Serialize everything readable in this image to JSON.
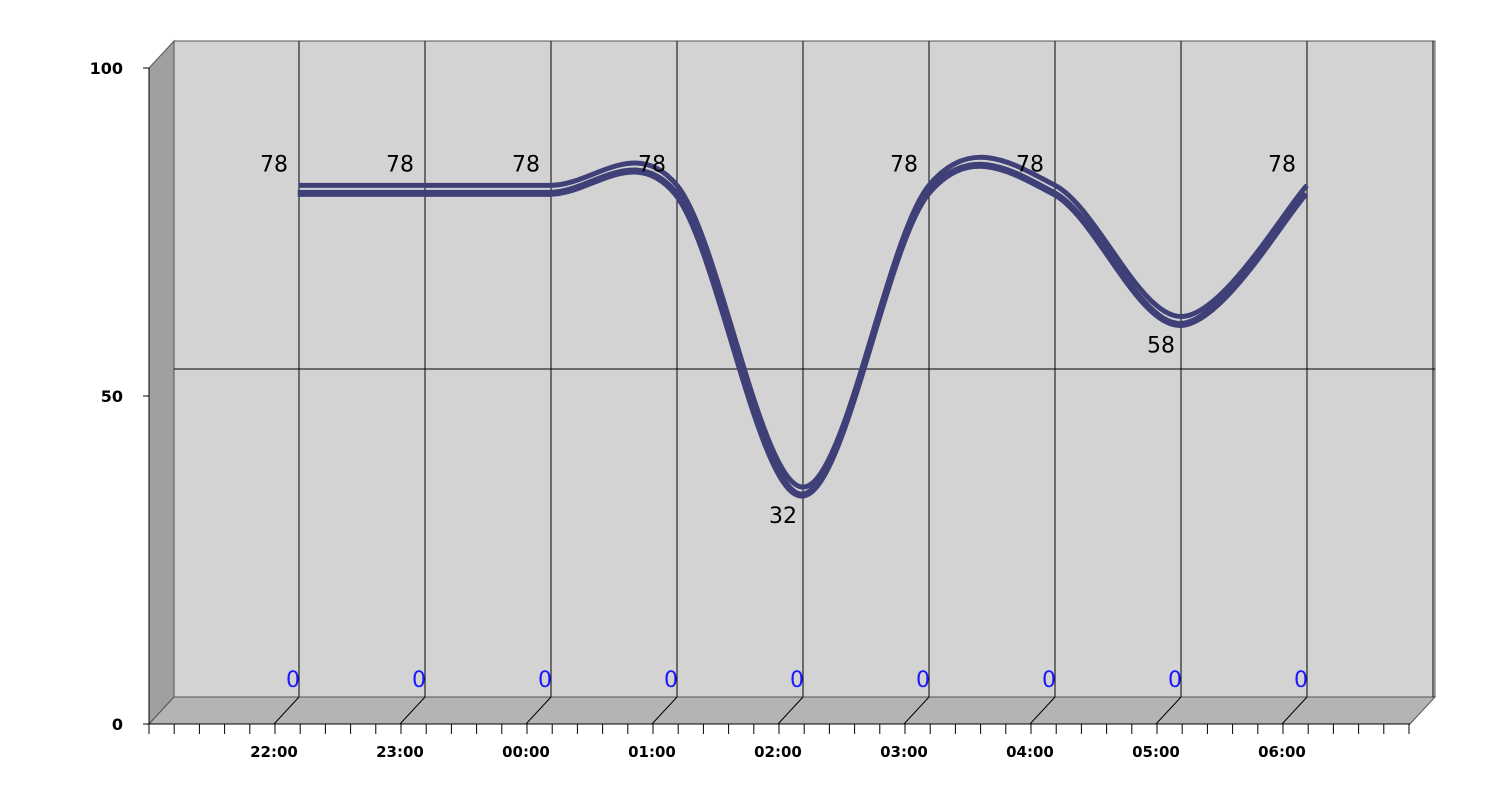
{
  "chart_data": {
    "type": "line",
    "title": "",
    "xlabel": "",
    "ylabel": "",
    "categories": [
      "22:00",
      "23:00",
      "00:00",
      "01:00",
      "02:00",
      "03:00",
      "04:00",
      "05:00",
      "06:00"
    ],
    "series": [
      {
        "values": [
          78,
          78,
          78,
          78,
          32,
          78,
          78,
          58,
          78
        ]
      },
      {
        "values": [
          0,
          0,
          0,
          0,
          0,
          0,
          0,
          0,
          0
        ]
      }
    ],
    "ylim": [
      0,
      100
    ],
    "yticks": [
      "0",
      "50",
      "100"
    ],
    "grid": true,
    "style": "3d",
    "colors": {
      "line": "#404078",
      "back_wall": "#d3d3d3",
      "side_wall": "#a0a0a0",
      "floor": "#b4b4b4",
      "zero_labels": "#1a1aff"
    }
  }
}
